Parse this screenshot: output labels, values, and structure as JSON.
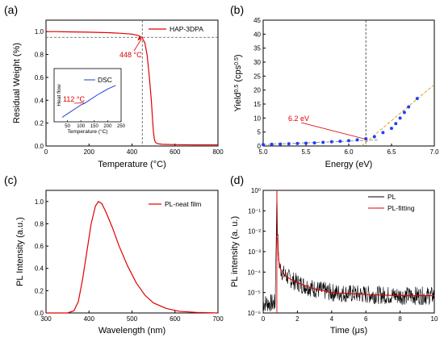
{
  "figure": {
    "panels": [
      "(a)",
      "(b)",
      "(c)",
      "(d)"
    ]
  },
  "chart_data": [
    {
      "panel": "(a)",
      "type": "line",
      "xlabel": "Temperature (°C)",
      "ylabel": "Residual Weight (%)",
      "xlim": [
        0,
        800
      ],
      "ylim": [
        0,
        1.1
      ],
      "xticks": [
        0,
        200,
        400,
        600,
        800
      ],
      "yticks": [
        0.0,
        0.2,
        0.4,
        0.6,
        0.8,
        1.0
      ],
      "xtick_labels": [
        "0",
        "200",
        "400",
        "600",
        "800"
      ],
      "ytick_labels": [
        "0.0",
        "0.2",
        "0.4",
        "0.6",
        "0.8",
        "1.0"
      ],
      "series": [
        {
          "name": "HAP-3DPA",
          "color": "#e00000",
          "x": [
            0,
            50,
            100,
            200,
            300,
            350,
            400,
            420,
            430,
            440,
            448,
            460,
            470,
            480,
            490,
            495,
            500,
            505,
            510,
            520,
            540,
            600,
            700,
            800
          ],
          "y": [
            1.0,
            1.0,
            0.998,
            0.995,
            0.99,
            0.985,
            0.978,
            0.97,
            0.965,
            0.955,
            0.945,
            0.9,
            0.8,
            0.62,
            0.4,
            0.25,
            0.12,
            0.05,
            0.03,
            0.02,
            0.015,
            0.012,
            0.01,
            0.01
          ]
        }
      ],
      "annotations": [
        "448 °C"
      ],
      "guides": {
        "x": 448,
        "y": 0.95
      },
      "legend": "top-right",
      "inset": {
        "type": "line",
        "xlabel": "Temperature (°C)",
        "ylabel": "Heat flow",
        "xlim": [
          0,
          250
        ],
        "xticks": [
          50,
          100,
          150,
          200,
          250
        ],
        "xtick_labels": [
          "50",
          "100",
          "150",
          "200",
          "250"
        ],
        "series": [
          {
            "name": "DSC",
            "color": "#1f3fcf",
            "x": [
              30,
              50,
              80,
              100,
              112,
              130,
              160,
              200,
              230
            ],
            "y": [
              0.0,
              0.08,
              0.2,
              0.28,
              0.31,
              0.38,
              0.5,
              0.64,
              0.72
            ]
          }
        ],
        "annotations": [
          "112 °C"
        ],
        "legend": "top-right"
      }
    },
    {
      "panel": "(b)",
      "type": "scatter",
      "xlabel": "Energy (eV)",
      "ylabel": "Yield^0.5 (cps^0.5)",
      "xlim": [
        5.0,
        7.0
      ],
      "ylim": [
        0,
        45
      ],
      "xticks": [
        5.0,
        5.5,
        6.0,
        6.5,
        7.0
      ],
      "yticks": [
        0,
        5,
        10,
        15,
        20,
        25,
        30,
        35,
        40,
        45
      ],
      "xtick_labels": [
        "5.0",
        "5.5",
        "6.0",
        "6.5",
        "7.0"
      ],
      "ytick_labels": [
        "0",
        "5",
        "10",
        "15",
        "20",
        "25",
        "30",
        "35",
        "40",
        "45"
      ],
      "series": [
        {
          "color": "#1f3fff",
          "x": [
            5.0,
            5.1,
            5.2,
            5.3,
            5.4,
            5.5,
            5.6,
            5.7,
            5.8,
            5.9,
            6.0,
            6.1,
            6.2,
            6.3,
            6.4,
            6.5,
            6.55,
            6.6,
            6.65,
            6.7,
            6.8
          ],
          "y": [
            0.5,
            0.6,
            0.7,
            0.8,
            0.9,
            1.0,
            1.1,
            1.3,
            1.5,
            1.7,
            1.9,
            2.2,
            2.6,
            3.3,
            4.8,
            6.3,
            8.0,
            10.0,
            12.0,
            14.0,
            17.0
          ]
        }
      ],
      "fit_lines": [
        {
          "x": [
            5.0,
            6.35
          ],
          "y": [
            0.5,
            2.2
          ]
        },
        {
          "x": [
            6.15,
            7.0
          ],
          "y": [
            0.0,
            22.0
          ]
        }
      ],
      "guides": {
        "x": 6.2
      },
      "annotations": [
        "6.2 eV"
      ]
    },
    {
      "panel": "(c)",
      "type": "line",
      "xlabel": "Wavelength (nm)",
      "ylabel": "PL Intensity (a.u.)",
      "xlim": [
        300,
        700
      ],
      "ylim": [
        0,
        1.1
      ],
      "xticks": [
        300,
        400,
        500,
        600,
        700
      ],
      "yticks": [
        0.0,
        0.2,
        0.4,
        0.6,
        0.8,
        1.0
      ],
      "xtick_labels": [
        "300",
        "400",
        "500",
        "600",
        "700"
      ],
      "ytick_labels": [
        "0.0",
        "0.2",
        "0.4",
        "0.6",
        "0.8",
        "1.0"
      ],
      "series": [
        {
          "name": "PL-neat film",
          "color": "#e00000",
          "x": [
            300,
            350,
            365,
            375,
            385,
            395,
            405,
            415,
            422,
            430,
            440,
            455,
            470,
            490,
            510,
            530,
            550,
            580,
            610,
            650,
            700
          ],
          "y": [
            0.0,
            0.0,
            0.02,
            0.1,
            0.3,
            0.55,
            0.8,
            0.96,
            1.0,
            0.98,
            0.9,
            0.76,
            0.6,
            0.42,
            0.27,
            0.16,
            0.09,
            0.04,
            0.015,
            0.005,
            0.0
          ]
        }
      ],
      "legend": "top-right"
    },
    {
      "panel": "(d)",
      "type": "line",
      "xlabel": "Time (μs)",
      "ylabel": "PL intensity (a. u.)",
      "xlim": [
        0,
        10
      ],
      "ylim": [
        1e-06,
        1
      ],
      "yscale": "log",
      "xticks": [
        0,
        2,
        4,
        6,
        8,
        10
      ],
      "xtick_labels": [
        "0",
        "2",
        "4",
        "6",
        "8",
        "10"
      ],
      "yticks": [
        1e-06,
        1e-05,
        0.0001,
        0.001,
        0.01,
        0.1,
        1
      ],
      "ytick_labels": [
        "10⁻⁶",
        "10⁻⁵",
        "10⁻⁴",
        "10⁻³",
        "10⁻²",
        "10⁻¹",
        "10⁰"
      ],
      "series": [
        {
          "name": "PL",
          "color": "#000000",
          "x": [
            0,
            0.7,
            0.8,
            0.85,
            0.9,
            1.0,
            1.2,
            1.5,
            2.0,
            3.0,
            4.0,
            6.0,
            8.0,
            10.0
          ],
          "y": [
            3e-06,
            3e-06,
            1.0,
            0.005,
            0.0004,
            0.00015,
            8e-05,
            5e-05,
            3e-05,
            1.5e-05,
            1e-05,
            8e-06,
            7e-06,
            7e-06
          ]
        },
        {
          "name": "PL-fitting",
          "color": "#e00000",
          "x": [
            0.85,
            0.9,
            1.0,
            1.2,
            1.5,
            2.0,
            3.0,
            4.0,
            6.0,
            8.0,
            10.0
          ],
          "y": [
            0.005,
            0.0004,
            0.00015,
            8e-05,
            5e-05,
            3e-05,
            1.5e-05,
            1e-05,
            8e-06,
            7e-06,
            7e-06
          ]
        }
      ],
      "legend": "top-right"
    }
  ]
}
